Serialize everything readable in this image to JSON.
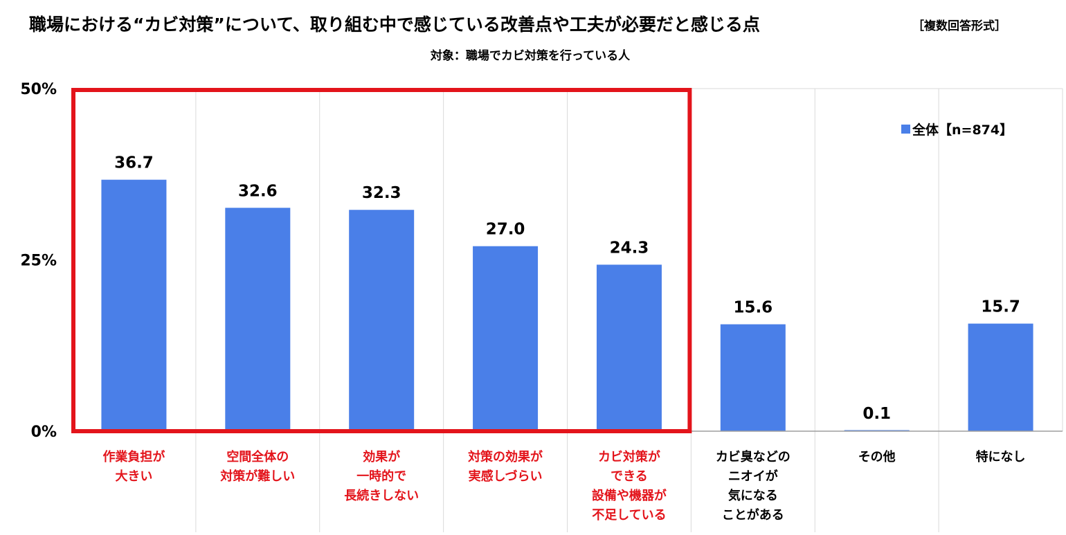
{
  "chart_data": {
    "type": "bar",
    "title": "職場における“カビ対策”について、取り組む中で感じている改善点や工夫が必要だと感じる点",
    "title_note": "［複数回答形式］",
    "subtitle": "対象：職場でカビ対策を行っている人",
    "categories": [
      [
        "作業負担が",
        "大きい"
      ],
      [
        "空間全体の",
        "対策が難しい"
      ],
      [
        "効果が",
        "一時的で",
        "長続きしない"
      ],
      [
        "対策の効果が",
        "実感しづらい"
      ],
      [
        "カビ対策が",
        "できる",
        "設備や機器が",
        "不足している"
      ],
      [
        "カビ臭などの",
        "ニオイが",
        "気になる",
        "ことがある"
      ],
      [
        "その他"
      ],
      [
        "特になし"
      ]
    ],
    "series": [
      {
        "name": "全体【n=874】",
        "values": [
          36.7,
          32.6,
          32.3,
          27.0,
          24.3,
          15.6,
          0.1,
          15.7
        ]
      }
    ],
    "value_labels": [
      "36.7",
      "32.6",
      "32.3",
      "27.0",
      "24.3",
      "15.6",
      "0.1",
      "15.7"
    ],
    "yticks": [
      "0%",
      "25%",
      "50%"
    ],
    "ytick_values": [
      0,
      25,
      50
    ],
    "ylim": [
      0,
      50
    ],
    "legend_position": "top-right",
    "grid": "vertical category separators",
    "highlighted_categories": [
      0,
      1,
      2,
      3,
      4
    ],
    "colors": {
      "bar": "#4a7fe8",
      "highlight": "#e3141b",
      "text": "#000000",
      "grid": "#d9d9d9"
    }
  }
}
